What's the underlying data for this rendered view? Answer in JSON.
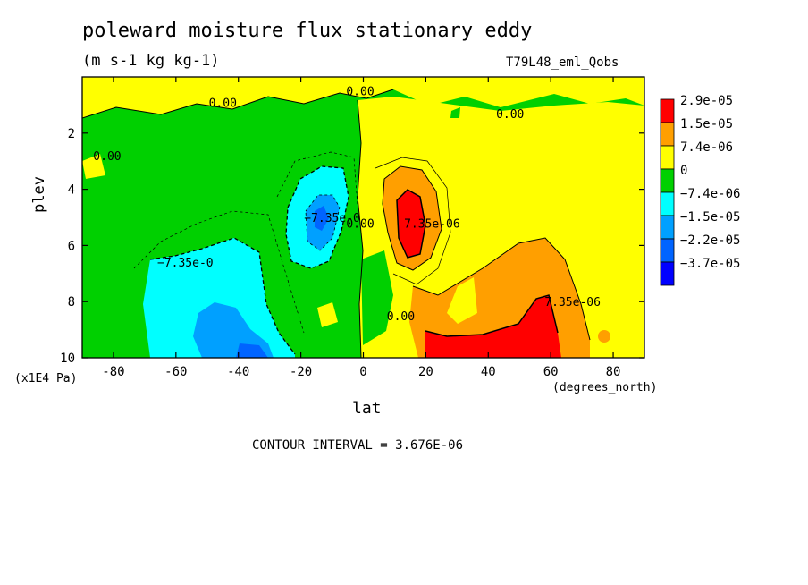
{
  "title": "poleward moisture flux stationary eddy",
  "units": "(m s-1 kg kg-1)",
  "run_label": "T79L48_eml_Qobs",
  "contour_interval": "CONTOUR INTERVAL = 3.676E-06",
  "chart_data": {
    "type": "heatmap",
    "title": "poleward moisture flux stationary eddy",
    "xlabel": "lat",
    "xunit": "(degrees_north)",
    "ylabel": "plev",
    "yunit": "(x1E4 Pa)",
    "xlim": [
      -90,
      90
    ],
    "ylim": [
      10,
      0
    ],
    "x_ticks": [
      "-80",
      "-60",
      "-40",
      "-20",
      "0",
      "20",
      "40",
      "60",
      "80"
    ],
    "x_tick_values": [
      -80,
      -60,
      -40,
      -20,
      0,
      20,
      40,
      60,
      80
    ],
    "y_ticks": [
      "2",
      "4",
      "6",
      "8",
      "10"
    ],
    "y_tick_values": [
      2,
      4,
      6,
      8,
      10
    ],
    "legend": [
      {
        "label": "2.9e-05",
        "color": "#ff0000"
      },
      {
        "label": "1.5e-05",
        "color": "#ff9f00"
      },
      {
        "label": "7.4e-06",
        "color": "#ffff00"
      },
      {
        "label": "0",
        "color": "#00d000"
      },
      {
        "label": "−7.4e-06",
        "color": "#00ffff"
      },
      {
        "label": "−1.5e-05",
        "color": "#00a0ff"
      },
      {
        "label": "−2.2e-05",
        "color": "#0064ff"
      },
      {
        "label": "−3.7e-05",
        "color": "#0000ff"
      }
    ],
    "contour_labels": [
      {
        "text": "0.00",
        "lat": -45,
        "plev": 0.9
      },
      {
        "text": "0.00",
        "lat": -1,
        "plev": 0.5
      },
      {
        "text": "0.00",
        "lat": 47,
        "plev": 1.3
      },
      {
        "text": "0.00",
        "lat": -82,
        "plev": 2.8
      },
      {
        "text": "−7.35e-0",
        "lat": -57,
        "plev": 6.6
      },
      {
        "text": "−7.35e-0",
        "lat": -10,
        "plev": 5.0
      },
      {
        "text": "0.00",
        "lat": -1,
        "plev": 5.2
      },
      {
        "text": "7.35e-06",
        "lat": 22,
        "plev": 5.2
      },
      {
        "text": "7.35e-06",
        "lat": 67,
        "plev": 8.0
      },
      {
        "text": "0.00",
        "lat": 12,
        "plev": 8.5
      }
    ],
    "features": [
      {
        "region": "negative",
        "lat_range": [
          -70,
          -25
        ],
        "plev_range": [
          6.5,
          10
        ],
        "min": -3.7e-05
      },
      {
        "region": "negative",
        "lat_range": [
          -25,
          -5
        ],
        "plev_range": [
          3.5,
          7.5
        ],
        "min": -2.2e-05
      },
      {
        "region": "positive",
        "lat_range": [
          8,
          25
        ],
        "plev_range": [
          3.5,
          8.5
        ],
        "max": 2.9e-05
      },
      {
        "region": "positive",
        "lat_range": [
          15,
          65
        ],
        "plev_range": [
          7,
          10
        ],
        "max": 2.9e-05
      }
    ]
  }
}
